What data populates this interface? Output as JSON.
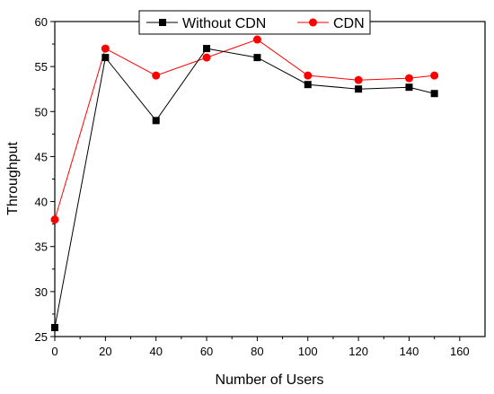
{
  "chart_data": {
    "type": "line",
    "xlabel": "Number of Users",
    "ylabel": "Throughput",
    "xlim": [
      0,
      170
    ],
    "ylim": [
      25,
      60
    ],
    "x_ticks": [
      0,
      20,
      40,
      60,
      80,
      100,
      120,
      140,
      160
    ],
    "y_ticks": [
      25,
      30,
      35,
      40,
      45,
      50,
      55,
      60
    ],
    "legend_position": "top-center",
    "grid": false,
    "series": [
      {
        "name": "Without CDN",
        "color": "#000000",
        "marker": "square",
        "x": [
          0,
          20,
          40,
          60,
          80,
          100,
          120,
          140,
          150
        ],
        "y": [
          26,
          56,
          49,
          57,
          56,
          53,
          52.5,
          52.7,
          52
        ]
      },
      {
        "name": "CDN",
        "color": "#ff0000",
        "marker": "circle",
        "x": [
          0,
          20,
          40,
          60,
          80,
          100,
          120,
          140,
          150
        ],
        "y": [
          38,
          57,
          54,
          56,
          58,
          54,
          53.5,
          53.7,
          54
        ]
      }
    ]
  }
}
